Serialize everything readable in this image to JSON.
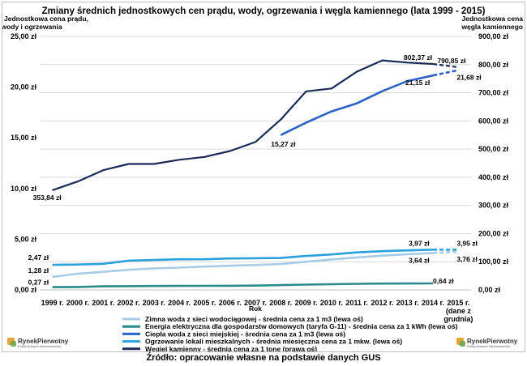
{
  "chart_data": {
    "type": "line",
    "title": "Zmiany średnich jednostkowych cen prądu, wody, ogrzewania i węgla kamiennego (lata 1999 - 2015)",
    "y_left_label": [
      "Jednostkowa cena prądu,",
      "wody i ogrzewania"
    ],
    "y_right_label": [
      "Jednostkowa cena",
      "węgla kamiennego"
    ],
    "xlabel": "Rok",
    "categories": [
      "1999 r.",
      "2000 r.",
      "2001 r.",
      "2002 r.",
      "2003 r.",
      "2004 r.",
      "2005 r.",
      "2006 r.",
      "2007 r.",
      "2008 r.",
      "2009 r.",
      "2010 r.",
      "2011 r.",
      "2012 r.",
      "2013 r.",
      "2014 r.",
      "2015 r."
    ],
    "category_sub": [
      "",
      "",
      "",
      "",
      "",
      "",
      "",
      "",
      "",
      "",
      "",
      "",
      "",
      "",
      "",
      "",
      "(dane z grudnia)"
    ],
    "y_left_ticks": [
      "0,00 zł",
      "5,00 zł",
      "10,00 zł",
      "15,00 zł",
      "20,00 zł",
      "25,00 zł"
    ],
    "y_right_ticks": [
      "0,00 zł",
      "100,00 zł",
      "200,00 zł",
      "300,00 zł",
      "400,00 zł",
      "500,00 zł",
      "600,00 zł",
      "700,00 zł",
      "800,00 zł",
      "900,00 zł"
    ],
    "ylim_left": [
      0,
      25
    ],
    "ylim_right": [
      0,
      900
    ],
    "grid": true,
    "legend_position": "bottom",
    "series": [
      {
        "name": "Zimna woda z sieci wodociągowej - średnia cena za 1 m3 (lewa oś)",
        "axis": "left",
        "color": "#a6cbe8",
        "values": [
          1.28,
          1.6,
          1.78,
          1.98,
          2.12,
          2.2,
          2.3,
          2.38,
          2.45,
          2.55,
          2.78,
          3.0,
          3.2,
          3.38,
          3.52,
          3.64,
          3.76
        ]
      },
      {
        "name": "Energia elektryczna dla gospodarstw domowych (taryfa G-11) - średnia cena za 1 kWh (lewa oś)",
        "axis": "left",
        "color": "#2a8a8a",
        "values": [
          0.27,
          0.29,
          0.35,
          0.37,
          0.38,
          0.39,
          0.4,
          0.41,
          0.42,
          0.47,
          0.52,
          0.56,
          0.6,
          0.62,
          0.63,
          0.64,
          null
        ]
      },
      {
        "name": "Ciepła woda z sieci miejskiej - średnia cena za 1 m3 (lewa oś)",
        "axis": "left",
        "color": "#2a62c8",
        "values": [
          null,
          null,
          null,
          null,
          null,
          null,
          null,
          null,
          null,
          15.27,
          16.5,
          17.6,
          18.4,
          19.6,
          20.6,
          21.15,
          21.68
        ]
      },
      {
        "name": "Ogrzewanie lokali mieszkalnych - średnia miesięczna cena za 1 mkw. (lewa oś)",
        "axis": "left",
        "color": "#2aa0dc",
        "values": [
          2.47,
          2.5,
          2.57,
          2.88,
          2.95,
          3.02,
          3.03,
          3.1,
          3.12,
          3.15,
          3.35,
          3.5,
          3.7,
          3.82,
          3.9,
          3.97,
          3.95
        ]
      },
      {
        "name": "Węgiel kamienny - średnia cena za 1 tonę (prawa oś)",
        "axis": "right",
        "color": "#1a2a58",
        "values": [
          353.84,
          385,
          425,
          447,
          447,
          462,
          472,
          493,
          525,
          605,
          705,
          715,
          775,
          815,
          807,
          802.37,
          790.85
        ]
      }
    ],
    "data_labels": [
      {
        "series": 0,
        "index": 0,
        "text": "1,28 zł"
      },
      {
        "series": 0,
        "index": 15,
        "text": "3,64 zł"
      },
      {
        "series": 0,
        "index": 16,
        "text": "3,76 zł"
      },
      {
        "series": 1,
        "index": 0,
        "text": "0,27 zł"
      },
      {
        "series": 1,
        "index": 15,
        "text": "0,64 zł"
      },
      {
        "series": 2,
        "index": 9,
        "text": "15,27 zł"
      },
      {
        "series": 2,
        "index": 15,
        "text": "21,15 zł"
      },
      {
        "series": 2,
        "index": 16,
        "text": "21,68 zł"
      },
      {
        "series": 3,
        "index": 0,
        "text": "2,47 zł"
      },
      {
        "series": 3,
        "index": 15,
        "text": "3,97 zł"
      },
      {
        "series": 3,
        "index": 16,
        "text": "3,95 zł"
      },
      {
        "series": 4,
        "index": 0,
        "text": "353,84 zł"
      },
      {
        "series": 4,
        "index": 15,
        "text": "802,37 zł"
      },
      {
        "series": 4,
        "index": 16,
        "text": "790,85 zł"
      }
    ]
  },
  "logo": {
    "name": "RynekPierwotny",
    "tagline": "Portal Nowych Nieruchomości"
  },
  "footer": "Źródło: opracowanie własne na podstawie danych GUS"
}
